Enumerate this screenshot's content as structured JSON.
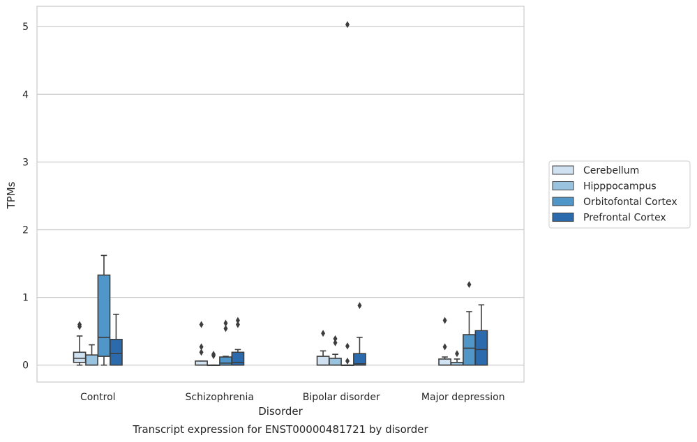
{
  "chart_data": {
    "type": "box",
    "title": "",
    "caption": "Transcript expression for ENST00000481721 by disorder",
    "xlabel": "Disorder",
    "ylabel": "TPMs",
    "ylim": [
      -0.25,
      5.3
    ],
    "yticks": [
      "0",
      "1",
      "2",
      "3",
      "4",
      "5"
    ],
    "grid": "horizontal",
    "legend_position": "outside-right",
    "categories": [
      "Control",
      "Schizophrenia",
      "Bipolar disorder",
      "Major depression"
    ],
    "series": [
      {
        "name": "Cerebellum",
        "color": "#d0e1f2",
        "boxes": [
          {
            "whislo": 0.0,
            "q1": 0.04,
            "med": 0.1,
            "q3": 0.19,
            "whishi": 0.43,
            "fliers": [
              0.57,
              0.6
            ]
          },
          {
            "whislo": 0.0,
            "q1": 0.0,
            "med": 0.0,
            "q3": 0.06,
            "whishi": 0.06,
            "fliers": [
              0.19,
              0.27,
              0.6
            ]
          },
          {
            "whislo": 0.0,
            "q1": 0.0,
            "med": 0.0,
            "q3": 0.13,
            "whishi": 0.21,
            "fliers": [
              0.47
            ]
          },
          {
            "whislo": 0.0,
            "q1": 0.0,
            "med": 0.0,
            "q3": 0.09,
            "whishi": 0.12,
            "fliers": [
              0.27,
              0.66
            ]
          }
        ]
      },
      {
        "name": "Hipppocampus",
        "color": "#9ac3df",
        "boxes": [
          {
            "whislo": 0.0,
            "q1": 0.0,
            "med": 0.0,
            "q3": 0.15,
            "whishi": 0.3,
            "fliers": []
          },
          {
            "whislo": 0.0,
            "q1": 0.0,
            "med": 0.0,
            "q3": 0.0,
            "whishi": 0.0,
            "fliers": [
              0.14,
              0.16
            ]
          },
          {
            "whislo": 0.0,
            "q1": 0.0,
            "med": 0.0,
            "q3": 0.1,
            "whishi": 0.16,
            "fliers": [
              0.33,
              0.39
            ]
          },
          {
            "whislo": 0.0,
            "q1": 0.0,
            "med": 0.0,
            "q3": 0.04,
            "whishi": 0.09,
            "fliers": [
              0.17
            ]
          }
        ]
      },
      {
        "name": "Orbitofontal Cortex",
        "color": "#5096c8",
        "boxes": [
          {
            "whislo": 0.0,
            "q1": 0.13,
            "med": 0.41,
            "q3": 1.33,
            "whishi": 1.62,
            "fliers": []
          },
          {
            "whislo": 0.0,
            "q1": 0.0,
            "med": 0.03,
            "q3": 0.12,
            "whishi": 0.13,
            "fliers": [
              0.54,
              0.62
            ]
          },
          {
            "whislo": 0.0,
            "q1": 0.0,
            "med": 0.0,
            "q3": 0.0,
            "whishi": 0.0,
            "fliers": [
              0.06,
              0.28,
              5.03
            ]
          },
          {
            "whislo": 0.0,
            "q1": 0.0,
            "med": 0.25,
            "q3": 0.45,
            "whishi": 0.79,
            "fliers": [
              1.19
            ]
          }
        ]
      },
      {
        "name": "Prefrontal Cortex",
        "color": "#2a6aad",
        "boxes": [
          {
            "whislo": 0.0,
            "q1": 0.0,
            "med": 0.17,
            "q3": 0.38,
            "whishi": 0.75,
            "fliers": []
          },
          {
            "whislo": 0.0,
            "q1": 0.0,
            "med": 0.04,
            "q3": 0.19,
            "whishi": 0.23,
            "fliers": [
              0.6,
              0.66
            ]
          },
          {
            "whislo": 0.0,
            "q1": 0.0,
            "med": 0.02,
            "q3": 0.17,
            "whishi": 0.41,
            "fliers": [
              0.88
            ]
          },
          {
            "whislo": 0.0,
            "q1": 0.0,
            "med": 0.23,
            "q3": 0.51,
            "whishi": 0.89,
            "fliers": []
          }
        ]
      }
    ]
  }
}
